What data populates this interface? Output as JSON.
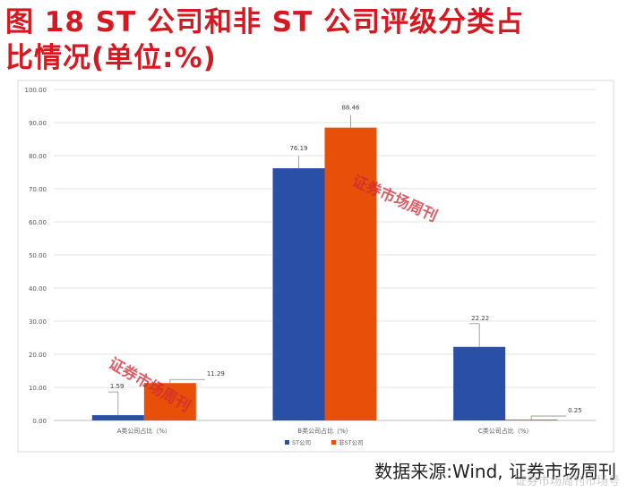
{
  "title": {
    "line1": "图 18   ST 公司和非 ST 公司评级分类占",
    "line2": "比情况(单位:%)"
  },
  "source_text": "数据来源:Wind, 证券市场周刊",
  "watermark_text": "证券市场周刊市场号",
  "stamp_text": "证券市场周刊",
  "chart_data": {
    "type": "bar",
    "categories": [
      "A类公司占比（%）",
      "B类公司占比（%）",
      "C类公司占比（%）"
    ],
    "series": [
      {
        "name": "ST公司",
        "color": "#2a4fa6",
        "values": [
          1.59,
          76.19,
          22.22
        ],
        "labels": [
          "1.59",
          "76.19",
          "22.22"
        ]
      },
      {
        "name": "非ST公司",
        "color": "#e8500a",
        "values": [
          11.29,
          88.46,
          0.25
        ],
        "labels": [
          "11.29",
          "88.46",
          "0.25"
        ]
      }
    ],
    "ylim": [
      0,
      100
    ],
    "yticks": [
      0,
      10,
      20,
      30,
      40,
      50,
      60,
      70,
      80,
      90,
      100
    ],
    "ytick_labels": [
      "0.00",
      "10.00",
      "20.00",
      "30.00",
      "40.00",
      "50.00",
      "60.00",
      "70.00",
      "80.00",
      "90.00",
      "100.00"
    ],
    "legend_position": "bottom",
    "grid": true
  }
}
